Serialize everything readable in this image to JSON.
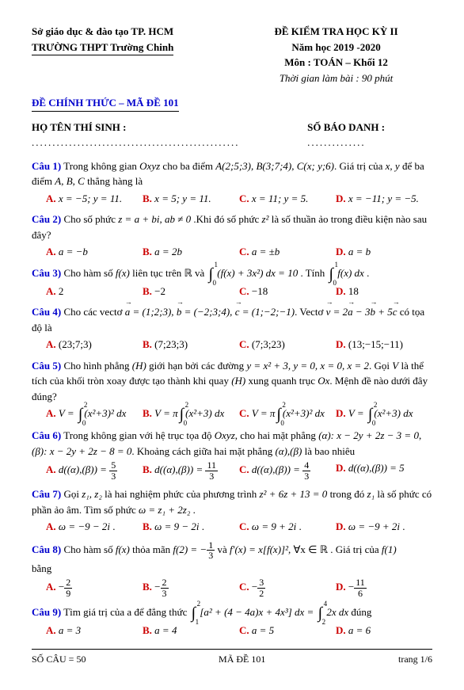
{
  "header": {
    "dept": "Sở giáo dục & đào tạo TP. HCM",
    "school": "TRƯỜNG THPT Trường Chinh",
    "exam_title": "ĐỀ KIỂM TRA HỌC KỲ II",
    "year": "Năm học 2019 -2020",
    "subject": "Môn : TOÁN – Khối 12",
    "duration": "Thời gian làm bài : 90 phút"
  },
  "code_title": "ĐỀ CHÍNH THỨC – MÃ ĐỀ 101",
  "student_label": "HỌ TÊN THÍ SINH :",
  "id_label": "SỐ BÁO DANH :",
  "q1": {
    "label": "Câu 1)",
    "text1": "Trong không gian ",
    "space": "Oxyz",
    "text2": " cho ba điểm ",
    "pts": "A(2;5;3), B(3;7;4), C(x; y;6)",
    "text3": ". Giá trị của ",
    "vars": "x, y",
    "text4": " để ba điểm ",
    "abc": "A, B, C",
    "text5": " thẳng hàng là",
    "a": "x = −5; y = 11.",
    "b": "x = 5; y = 11.",
    "c": "x = 11; y = 5.",
    "d": "x = −11; y = −5."
  },
  "q2": {
    "label": "Câu 2)",
    "text1": "Cho số phức ",
    "z": "z = a + bi, ab ≠ 0",
    "text2": " .Khi đó số phức ",
    "z2": "z²",
    "text3": " là số thuần ảo trong điều kiện nào sau đây?",
    "a": "a = −b",
    "b": "a = 2b",
    "c": "a = ±b",
    "d": "a = b"
  },
  "q3": {
    "label": "Câu 3)",
    "text1": "Cho hàm số ",
    "fx": "f(x)",
    "text2": " liên tục trên ℝ và ",
    "int1_top": "1",
    "int1_bot": "0",
    "expr1": "(f(x) + 3x²) dx = 10",
    "text3": ". Tính ",
    "int2_top": "1",
    "int2_bot": "0",
    "expr2": "f(x) dx",
    "a": "2",
    "b": "−2",
    "c": "−18",
    "d": "18"
  },
  "q4": {
    "label": "Câu 4)",
    "text1": "Cho các vectơ ",
    "vecs": "a = (1;2;3), b = (−2;3;4), c = (1;−2;−1)",
    "text2": ". Vectơ ",
    "v": "v = 2a − 3b + 5c",
    "text3": " có tọa độ là",
    "a": "(23;7;3)",
    "b": "(7;23;3)",
    "c": "(7;3;23)",
    "d": "(13;−15;−11)"
  },
  "q5": {
    "label": "Câu 5)",
    "text1": "Cho hình phẳng ",
    "H": "(H)",
    "text2": " giới hạn bởi các đường ",
    "curves": "y = x² + 3, y = 0, x = 0, x = 2",
    "text3": ". Gọi ",
    "V": "V",
    "text4": " là thể tích của khối tròn xoay được tạo thành khi quay ",
    "text5": " xung quanh trục ",
    "Ox": "Ox",
    "text6": ". Mệnh đề nào dưới đây đúng?",
    "int_top": "2",
    "int_bot": "0",
    "opt_a": "V = ∫(x²+3)² dx",
    "opt_b": "V = π∫(x²+3) dx",
    "opt_c": "V = π∫(x²+3)² dx",
    "opt_d": "V = ∫(x²+3) dx"
  },
  "q6": {
    "label": "Câu 6)",
    "text1": "Trong không gian với hệ trục tọa độ ",
    "space": "Oxyz",
    "text2": ", cho hai mặt phẳng ",
    "alpha": "(α): x − 2y + 2z − 3 = 0",
    "comma": ", ",
    "beta": "(β): x − 2y + 2z − 8 = 0",
    "text3": ". Khoảng cách giữa hai mặt phẳng ",
    "ab": "(α),(β)",
    "text4": " là bao nhiêu",
    "a_pre": "d((α),(β)) = ",
    "a_n": "5",
    "a_d": "3",
    "b_pre": "d((α),(β)) = ",
    "b_n": "11",
    "b_d": "3",
    "c_pre": "d((α),(β)) = ",
    "c_n": "4",
    "c_d": "3",
    "d_full": "d((α),(β)) = 5"
  },
  "q7": {
    "label": "Câu 7)",
    "text1": "Gọi ",
    "zs": "z₁, z₂",
    "text2": " là hai nghiệm phức của phương trình ",
    "eq": "z² + 6z + 13 = 0",
    "text3": " trong đó ",
    "z1": "z₁",
    "text4": " là số phức có phần ảo âm. Tìm số phức ",
    "w": "ω = z₁ + 2z₂",
    "a": "ω = −9 − 2i",
    "b": "ω = 9 − 2i",
    "c": "ω = 9 + 2i",
    "d": "ω = −9 + 2i"
  },
  "q8": {
    "label": "Câu 8)",
    "text1": "Cho hàm số ",
    "fx": "f(x)",
    "text2": " thỏa mãn ",
    "f2": "f(2) = −",
    "f2n": "1",
    "f2d": "3",
    "text3": " và ",
    "fprime": "f′(x) = x[f(x)]²",
    "text4": ", ∀x ∈ ℝ . Giá trị của ",
    "f1": "f(1)",
    "text5": " bằng",
    "an": "2",
    "ad": "9",
    "bn": "2",
    "bd": "3",
    "cn": "3",
    "cd": "2",
    "dn": "11",
    "dd": "6"
  },
  "q9": {
    "label": "Câu 9)",
    "text1": "Tìm giá trị của a để đẳng thức ",
    "int1_top": "2",
    "int1_bot": "1",
    "expr1": "[a² + (4 − 4a)x + 4x³] dx = ",
    "int2_top": "4",
    "int2_bot": "2",
    "expr2": "2x dx",
    "text2": " đúng",
    "a": "a = 3",
    "b": "a = 4",
    "c": "a = 5",
    "d": "a = 6"
  },
  "footer": {
    "count": "SỐ CÂU = 50",
    "code": "MÃ ĐỀ 101",
    "page": "trang 1/6"
  },
  "red_label_A": "A.",
  "red_label_B": "B.",
  "red_label_C": "C.",
  "red_label_D": "D."
}
